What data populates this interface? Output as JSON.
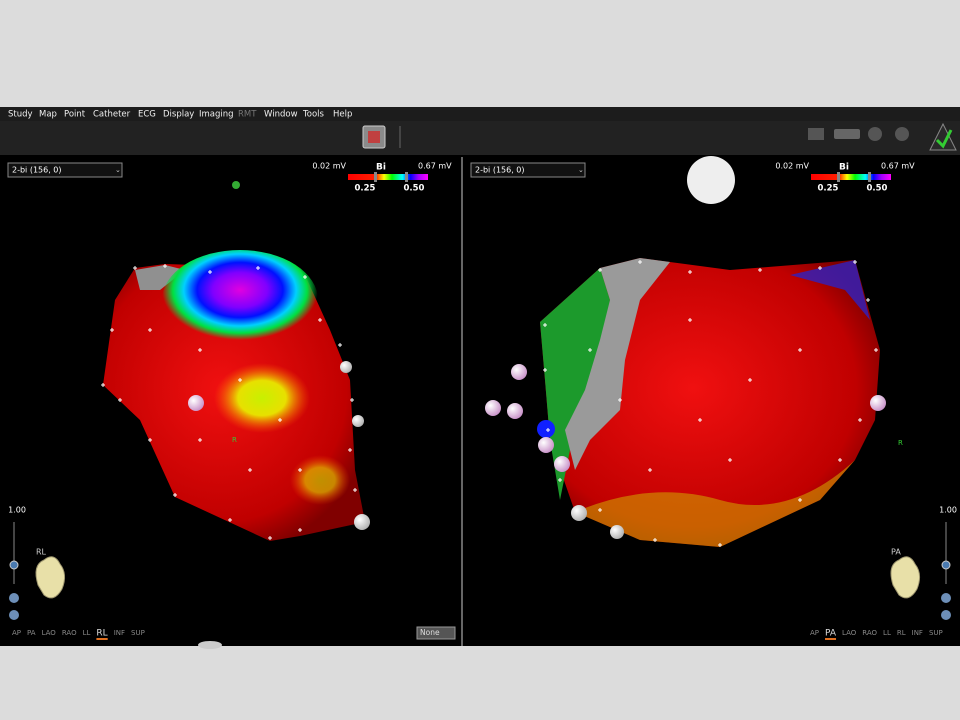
{
  "menu": [
    "Study",
    "Map",
    "Point",
    "Catheter",
    "ECG",
    "Display",
    "Imaging",
    "RMT",
    "Window",
    "Tools",
    "Help"
  ],
  "panels": [
    {
      "map_select": "2-bi (156, 0)",
      "scale": {
        "min_label": "0.02 mV",
        "name": "Bi",
        "max_label": "0.67 mV",
        "low": "0.25",
        "high": "0.50"
      },
      "zoom": "1.00",
      "orientation": "RL",
      "axis_label": "R",
      "active_view": "RL",
      "views": [
        "AP",
        "PA",
        "LAO",
        "RAO",
        "LL",
        "RL",
        "INF",
        "SUP"
      ],
      "dropdown": "None"
    },
    {
      "map_select": "2-bi (156, 0)",
      "scale": {
        "min_label": "0.02 mV",
        "name": "Bi",
        "max_label": "0.67 mV",
        "low": "0.25",
        "high": "0.50"
      },
      "zoom": "1.00",
      "orientation": "PA",
      "axis_label": "R",
      "active_view": "PA",
      "views": [
        "AP",
        "PA",
        "LAO",
        "RAO",
        "LL",
        "RL",
        "INF",
        "SUP"
      ]
    }
  ]
}
